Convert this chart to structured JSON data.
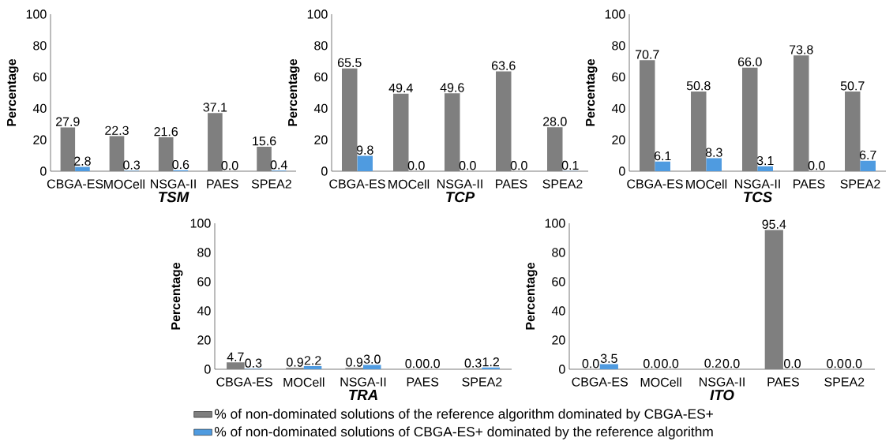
{
  "chart_data": [
    {
      "type": "bar",
      "title": "TSM",
      "ylabel": "Percentage",
      "categories": [
        "CBGA-ES",
        "MOCell",
        "NSGA-II",
        "PAES",
        "SPEA2"
      ],
      "ylim": [
        0,
        100
      ],
      "yticks": [
        0,
        20,
        40,
        60,
        80,
        100
      ],
      "series": [
        {
          "color": "#7f7f7f",
          "values": [
            27.9,
            22.3,
            21.6,
            37.1,
            15.6
          ],
          "value_labels": [
            "27.9",
            "22.3",
            "21.6",
            "37.1",
            "15.6"
          ]
        },
        {
          "color": "#4f9be0",
          "values": [
            2.8,
            0.3,
            0.6,
            0.0,
            0.4
          ],
          "value_labels": [
            "2.8",
            "0.3",
            "0.6",
            "0.0",
            "0.4"
          ]
        }
      ]
    },
    {
      "type": "bar",
      "title": "TCP",
      "ylabel": "Percentage",
      "categories": [
        "CBGA-ES",
        "MOCell",
        "NSGA-II",
        "PAES",
        "SPEA2"
      ],
      "ylim": [
        0,
        100
      ],
      "yticks": [
        0,
        20,
        40,
        60,
        80,
        100
      ],
      "series": [
        {
          "color": "#7f7f7f",
          "values": [
            65.5,
            49.4,
            49.6,
            63.6,
            28.0
          ],
          "value_labels": [
            "65.5",
            "49.4",
            "49.6",
            "63.6",
            "28.0"
          ]
        },
        {
          "color": "#4f9be0",
          "values": [
            9.8,
            0.0,
            0.0,
            0.0,
            0.1
          ],
          "value_labels": [
            "9.8",
            "0.0",
            "0.0",
            "0.0",
            "0.1"
          ]
        }
      ]
    },
    {
      "type": "bar",
      "title": "TCS",
      "ylabel": "Percentage",
      "categories": [
        "CBGA-ES",
        "MOCell",
        "NSGA-II",
        "PAES",
        "SPEA2"
      ],
      "ylim": [
        0,
        100
      ],
      "yticks": [
        0,
        20,
        40,
        60,
        80,
        100
      ],
      "series": [
        {
          "color": "#7f7f7f",
          "values": [
            70.7,
            50.8,
            66.0,
            73.8,
            50.7
          ],
          "value_labels": [
            "70.7",
            "50.8",
            "66.0",
            "73.8",
            "50.7"
          ]
        },
        {
          "color": "#4f9be0",
          "values": [
            6.1,
            8.3,
            3.1,
            0.0,
            6.7
          ],
          "value_labels": [
            "6.1",
            "8.3",
            "3.1",
            "0.0",
            "6.7"
          ]
        }
      ]
    },
    {
      "type": "bar",
      "title": "TRA",
      "ylabel": "Percentage",
      "categories": [
        "CBGA-ES",
        "MOCell",
        "NSGA-II",
        "PAES",
        "SPEA2"
      ],
      "ylim": [
        0,
        100
      ],
      "yticks": [
        0,
        20,
        40,
        60,
        80,
        100
      ],
      "series": [
        {
          "color": "#7f7f7f",
          "values": [
            4.7,
            0.9,
            0.9,
            0.0,
            0.3
          ],
          "value_labels": [
            "4.7",
            "0.9",
            "0.9",
            "0.0",
            "0.3"
          ]
        },
        {
          "color": "#4f9be0",
          "values": [
            0.3,
            2.2,
            3.0,
            0.0,
            1.2
          ],
          "value_labels": [
            "0.3",
            "2.2",
            "3.0",
            "0.0",
            "1.2"
          ]
        }
      ]
    },
    {
      "type": "bar",
      "title": "ITO",
      "ylabel": "Percentage",
      "categories": [
        "CBGA-ES",
        "MOCell",
        "NSGA-II",
        "PAES",
        "SPEA2"
      ],
      "ylim": [
        0,
        100
      ],
      "yticks": [
        0,
        20,
        40,
        60,
        80,
        100
      ],
      "legend": "bottom",
      "series": [
        {
          "name": "% of non-dominated solutions of the reference algorithm dominated by CBGA-ES+",
          "color": "#7f7f7f",
          "values": [
            0.0,
            0.0,
            0.2,
            95.4,
            0.0
          ],
          "value_labels": [
            "0.0",
            "0.0",
            "0.2",
            "95.4",
            "0.0"
          ]
        },
        {
          "name": "% of non-dominated solutions of CBGA-ES+ dominated by the reference algorithm",
          "color": "#4f9be0",
          "values": [
            3.5,
            0.0,
            0.0,
            0.0,
            0.0
          ],
          "value_labels": [
            "3.5",
            "0.0",
            "0.0",
            "0.0",
            "0.0"
          ]
        }
      ]
    }
  ]
}
